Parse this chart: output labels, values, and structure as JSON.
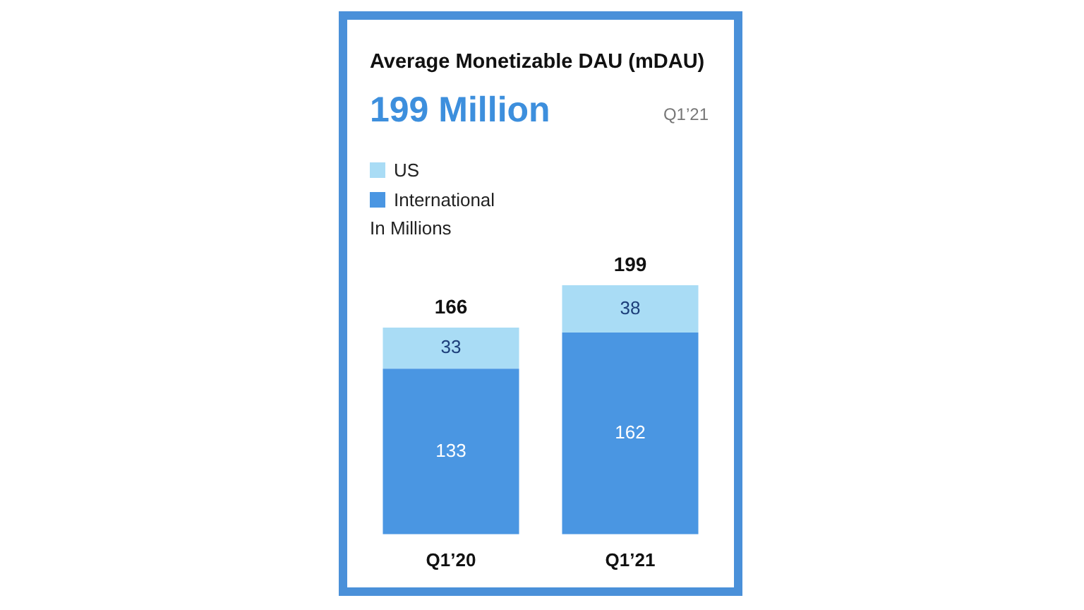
{
  "chart_data": {
    "type": "bar",
    "title": "Average Monetizable DAU (mDAU)",
    "subtitle": "199 Million",
    "annotations": [
      "Q1’21",
      "In Millions"
    ],
    "categories": [
      "Q1’20",
      "Q1’21"
    ],
    "stacked": true,
    "data_labels": true,
    "totals": [
      "166",
      "199"
    ],
    "legend": "top left",
    "series": [
      {
        "name": "International",
        "color": "#4a96e2",
        "values": [
          133,
          162
        ]
      },
      {
        "name": "US",
        "color": "#a9dcf5",
        "values": [
          33,
          38
        ]
      }
    ]
  }
}
